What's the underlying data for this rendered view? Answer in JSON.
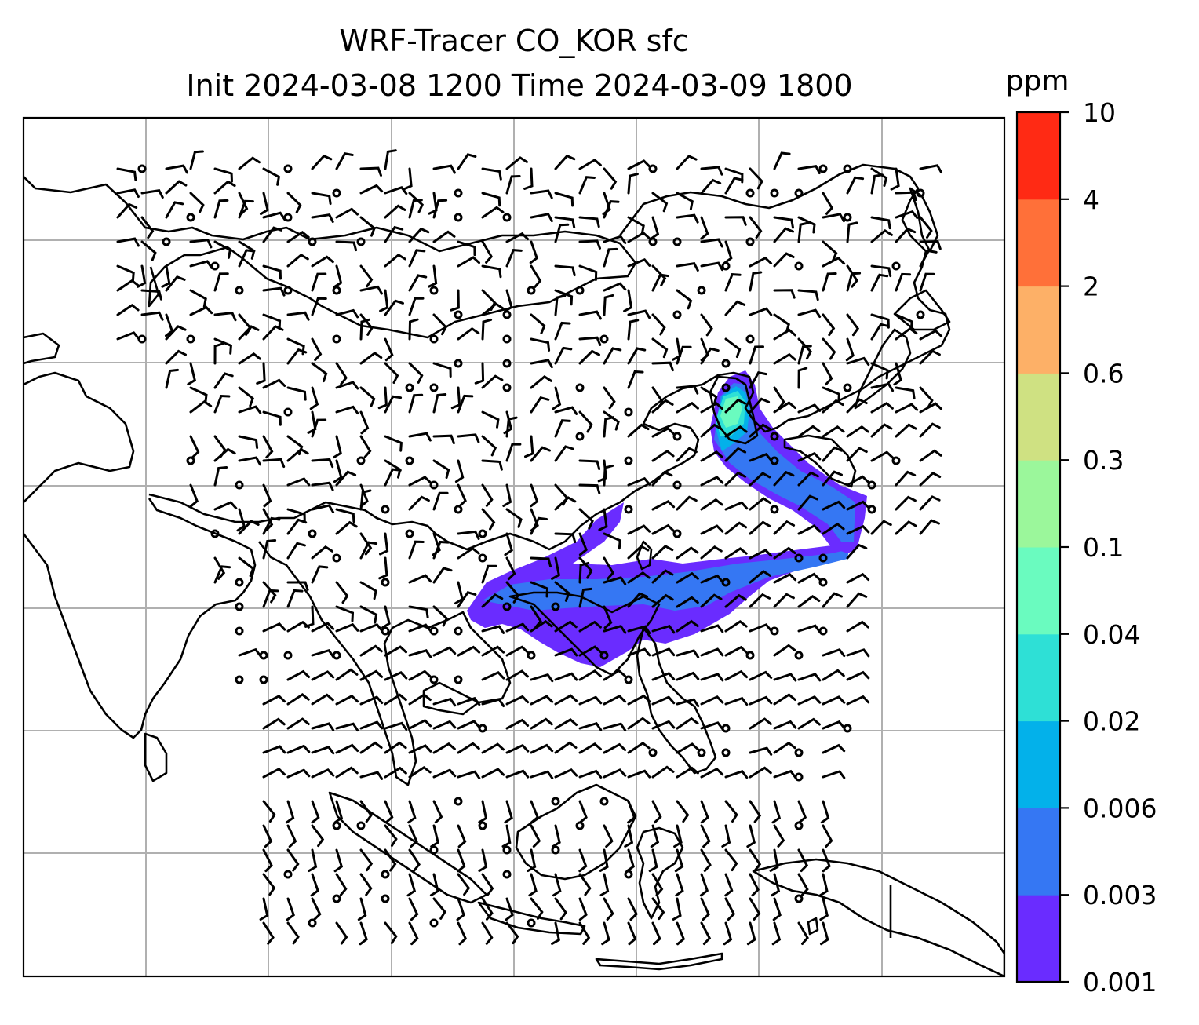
{
  "title": {
    "line1": "WRF-Tracer CO_KOR sfc",
    "line2": "Init 2024-03-08 1200 Time 2024-03-09 1800"
  },
  "colorbar": {
    "unit": "ppm",
    "levels": [
      "0.001",
      "0.003",
      "0.006",
      "0.02",
      "0.04",
      "0.1",
      "0.3",
      "0.6",
      "2",
      "4",
      "10"
    ],
    "colors": [
      "#6a2cff",
      "#3577f3",
      "#03b1ea",
      "#2ee0d6",
      "#6afbbf",
      "#9bf79b",
      "#cfe182",
      "#fdb067",
      "#ff7039",
      "#ff2a14"
    ]
  },
  "map": {
    "gridline_color": "#b0b0b0",
    "coastline_color": "#000000",
    "gridlines": true,
    "plume_path_description_hidden": false
  }
}
